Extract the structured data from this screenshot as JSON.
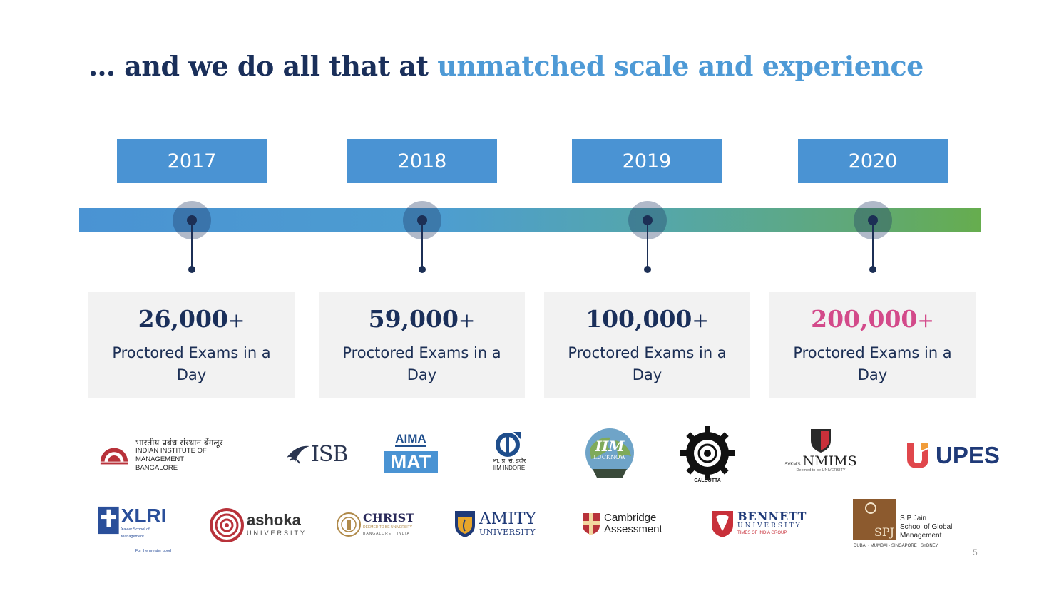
{
  "title": {
    "lead": "… and we do all that at ",
    "accent": "unmatched scale and experience"
  },
  "timeline": [
    {
      "year": "2017",
      "value": "26,000",
      "plus": "+",
      "desc": "Proctored Exams in a Day"
    },
    {
      "year": "2018",
      "value": "59,000",
      "plus": "+",
      "desc": "Proctored Exams in a Day"
    },
    {
      "year": "2019",
      "value": "100,000",
      "plus": "+",
      "desc": "Proctored Exams in a Day"
    },
    {
      "year": "2020",
      "value": "200,000",
      "plus": "+",
      "desc": "Proctored Exams in a Day"
    }
  ],
  "colors": {
    "year_box": "#4a93d3",
    "bar_start": "#4a93d3",
    "bar_end": "#66ad4e",
    "highlight": "#d34a8a",
    "navy": "#1a2f5a"
  },
  "logos": {
    "iimb": {
      "hindi": "भारतीय प्रबंध संस्थान बेंगलूर",
      "line1": "INDIAN INSTITUTE OF MANAGEMENT",
      "line2": "BANGALORE",
      "mark": "IIMB"
    },
    "isb": {
      "text": "ISB"
    },
    "aima": {
      "top": "AIMA",
      "bottom": "MAT"
    },
    "iim_indore": {
      "hindi": "भा. प्र. सं. इंदौर",
      "text": "IIM INDORE"
    },
    "iim_lucknow": {
      "main": "IIM",
      "sub": "LUCKNOW"
    },
    "iim_calcutta": {
      "text": "CALCUTTA"
    },
    "nmims": {
      "pre": "SVKM'S",
      "main": "NMIMS",
      "sub": "Deemed to be UNIVERSITY"
    },
    "upes": {
      "text": "UPES"
    },
    "xlri": {
      "main": "XLRI",
      "sub": "Xavier School of Management",
      "tag": "For the greater good"
    },
    "ashoka": {
      "main": "ashoka",
      "sub": "UNIVERSITY"
    },
    "christ": {
      "main": "CHRIST",
      "sub1": "DEEMED TO BE UNIVERSITY",
      "sub2": "BANGALORE · INDIA"
    },
    "amity": {
      "main": "AMITY",
      "sub": "UNIVERSITY"
    },
    "cambridge": {
      "line1": "Cambridge",
      "line2": "Assessment"
    },
    "bennett": {
      "main": "BENNETT",
      "sub": "UNIVERSITY",
      "tag": "TIMES OF INDIA GROUP"
    },
    "spjain": {
      "mark": "SPJ",
      "line1": "S P Jain",
      "line2": "School of Global",
      "line3": "Management",
      "cities": "DUBAI · MUMBAI · SINGAPORE · SYDNEY"
    }
  },
  "page_number": "5"
}
